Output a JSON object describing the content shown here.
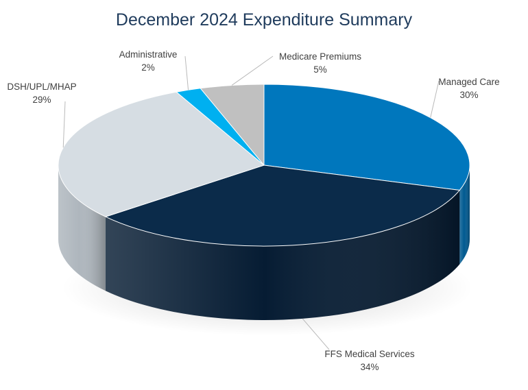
{
  "chart_data": {
    "type": "pie",
    "title": "December 2024 Expenditure Summary",
    "start_category": "Managed Care",
    "direction": "clockwise",
    "slices": [
      {
        "label": "Managed Care",
        "value": 30,
        "value_label": "30%",
        "color": "#0077bd"
      },
      {
        "label": "FFS Medical Services",
        "value": 34,
        "value_label": "34%",
        "color": "#0b2b4a"
      },
      {
        "label": "DSH/UPL/MHAP",
        "value": 29,
        "value_label": "29%",
        "color": "#d6dde3"
      },
      {
        "label": "Administrative",
        "value": 2,
        "value_label": "2%",
        "color": "#00b0f0"
      },
      {
        "label": "Medicare Premiums",
        "value": 5,
        "value_label": "5%",
        "color": "#c0c0c0"
      }
    ],
    "side_colors": [
      "#005a91",
      "#061c33",
      "#aeb6bd",
      "#0086b8",
      "#9a9a9a"
    ],
    "legend": "none",
    "label_style": "callout-with-leader-lines"
  }
}
